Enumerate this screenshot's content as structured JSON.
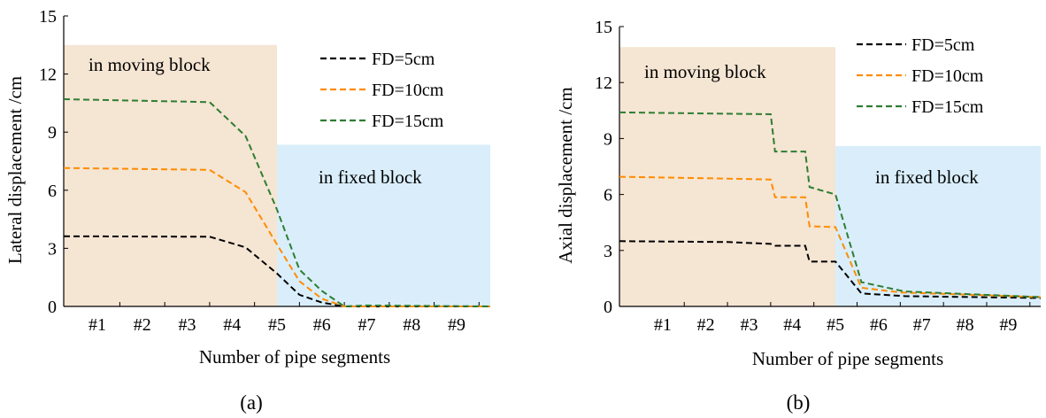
{
  "colors": {
    "moving_block": "#f5e5d3",
    "fixed_block": "#d9eefa",
    "fd5": "#000000",
    "fd10": "#ff8c00",
    "fd15": "#2e7d32"
  },
  "chart_data": [
    {
      "type": "line",
      "panel_label": "(a)",
      "xlabel": "Number of pipe segments",
      "ylabel": "Lateral displacement /cm",
      "xlim": [
        0.25,
        9.75
      ],
      "ylim": [
        0,
        15
      ],
      "y_ticks": [
        "0",
        "3",
        "6",
        "9",
        "12",
        "15"
      ],
      "categories": [
        "#1",
        "#2",
        "#3",
        "#4",
        "#5",
        "#6",
        "#7",
        "#8",
        "#9"
      ],
      "grid": false,
      "legend_position": "top-right",
      "regions": [
        {
          "label": "in moving block",
          "x_range": [
            0.25,
            5.0
          ],
          "y_top": 13.5,
          "kind": "moving"
        },
        {
          "label": "in fixed block",
          "x_range": [
            5.0,
            9.75
          ],
          "y_top": 8.35,
          "kind": "fixed"
        }
      ],
      "series": [
        {
          "name": "FD=5cm",
          "color_key": "fd5",
          "x": [
            0.25,
            3.5,
            4.3,
            5.0,
            5.5,
            6.0,
            6.5,
            7.0,
            9.75
          ],
          "y": [
            3.62,
            3.6,
            3.05,
            1.7,
            0.6,
            0.2,
            0.0,
            0.0,
            0.0
          ]
        },
        {
          "name": "FD=10cm",
          "color_key": "fd10",
          "x": [
            0.25,
            3.5,
            4.3,
            5.0,
            5.5,
            6.0,
            6.5,
            7.0,
            9.75
          ],
          "y": [
            7.15,
            7.05,
            5.9,
            3.2,
            1.3,
            0.4,
            0.0,
            0.0,
            0.0
          ]
        },
        {
          "name": "FD=15cm",
          "color_key": "fd15",
          "x": [
            0.25,
            3.5,
            4.3,
            5.0,
            5.5,
            6.0,
            6.5,
            7.0,
            9.75
          ],
          "y": [
            10.7,
            10.55,
            8.8,
            5.0,
            1.9,
            0.8,
            0.0,
            0.05,
            0.0
          ]
        }
      ]
    },
    {
      "type": "line",
      "panel_label": "(b)",
      "xlabel": "Number of pipe segments",
      "ylabel": "Axial displacement /cm",
      "xlim": [
        0.0,
        9.75
      ],
      "ylim": [
        0,
        15
      ],
      "y_ticks": [
        "0",
        "3",
        "6",
        "9",
        "12",
        "15"
      ],
      "categories": [
        "#1",
        "#2",
        "#3",
        "#4",
        "#5",
        "#6",
        "#7",
        "#8",
        "#9"
      ],
      "grid": false,
      "legend_position": "top-right",
      "regions": [
        {
          "label": "in moving block",
          "x_range": [
            0.0,
            5.0
          ],
          "y_top": 13.9,
          "kind": "moving"
        },
        {
          "label": "in fixed block",
          "x_range": [
            5.0,
            9.75
          ],
          "y_top": 8.6,
          "kind": "fixed"
        }
      ],
      "series": [
        {
          "name": "FD=5cm",
          "color_key": "fd5",
          "x": [
            0.0,
            2.5,
            3.5,
            3.6,
            4.3,
            4.4,
            5.0,
            5.6,
            6.6,
            9.75
          ],
          "y": [
            3.5,
            3.45,
            3.35,
            3.25,
            3.25,
            2.4,
            2.4,
            0.7,
            0.55,
            0.45
          ]
        },
        {
          "name": "FD=10cm",
          "color_key": "fd10",
          "x": [
            0.0,
            2.5,
            3.5,
            3.6,
            4.3,
            4.4,
            5.0,
            5.6,
            6.5,
            9.75
          ],
          "y": [
            6.95,
            6.85,
            6.8,
            5.85,
            5.85,
            4.3,
            4.25,
            1.0,
            0.75,
            0.5
          ]
        },
        {
          "name": "FD=15cm",
          "color_key": "fd15",
          "x": [
            0.0,
            3.5,
            3.6,
            4.3,
            4.4,
            5.0,
            5.6,
            6.6,
            9.75
          ],
          "y": [
            10.4,
            10.3,
            8.3,
            8.3,
            6.4,
            6.0,
            1.3,
            0.8,
            0.5
          ]
        }
      ]
    }
  ]
}
